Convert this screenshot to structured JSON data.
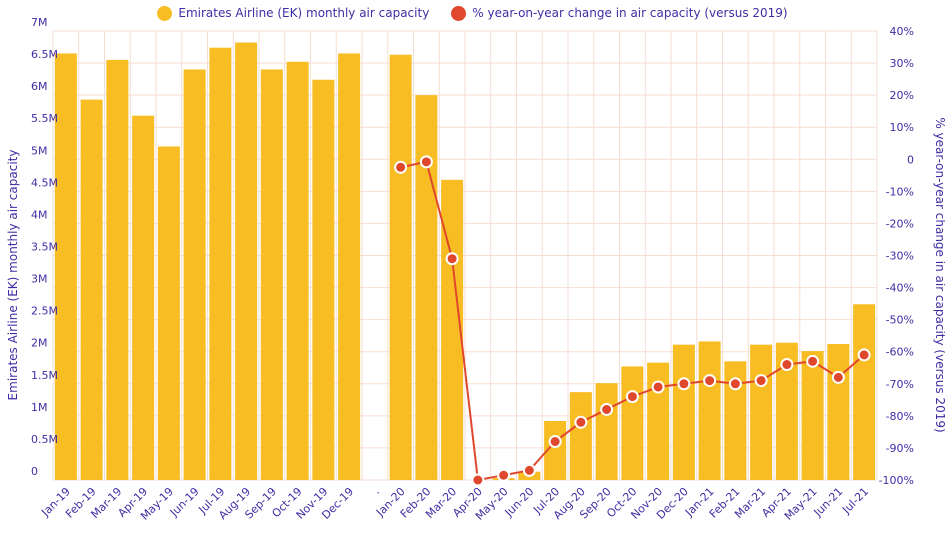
{
  "legend": {
    "bar_label": "Emirates Airline (EK) monthly air capacity",
    "line_label": "% year-on-year change in air capacity (versus 2019)"
  },
  "chart_data": {
    "type": "bar+line",
    "categories": [
      "Jan-19",
      "Feb-19",
      "Mar-19",
      "Apr-19",
      "May-19",
      "Jun-19",
      "Jul-19",
      "Aug-19",
      "Sep-19",
      "Oct-19",
      "Nov-19",
      "Dec-19",
      ".",
      "Jan-20",
      "Feb-20",
      "Mar-20",
      "Apr-20",
      "May-20",
      "Jun-20",
      "Jul-20",
      "Aug-20",
      "Sep-20",
      "Oct-20",
      "Nov-20",
      "Dec-20",
      "Jan-21",
      "Feb-21",
      "Mar-21",
      "Apr-21",
      "May-21",
      "Jun-21",
      "Jul-21"
    ],
    "series": [
      {
        "name": "Emirates Airline (EK) monthly air capacity",
        "type": "bar",
        "axis": "left",
        "values": [
          6650000,
          5930000,
          6550000,
          5680000,
          5200000,
          6400000,
          6740000,
          6820000,
          6400000,
          6520000,
          6240000,
          6650000,
          null,
          6630000,
          6000000,
          4680000,
          0,
          30000,
          130000,
          920000,
          1370000,
          1510000,
          1770000,
          1830000,
          2110000,
          2160000,
          1850000,
          2110000,
          2140000,
          2010000,
          2120000,
          2740000
        ]
      },
      {
        "name": "% year-on-year change in air capacity (versus 2019)",
        "type": "line",
        "axis": "right",
        "values": [
          null,
          null,
          null,
          null,
          null,
          null,
          null,
          null,
          null,
          null,
          null,
          null,
          null,
          -2.5,
          -0.8,
          -31,
          -100,
          -98.5,
          -97,
          -88,
          -82,
          -78,
          -74,
          -71,
          -70,
          -69,
          -70,
          -69,
          -64,
          -63,
          -68,
          -61
        ]
      }
    ],
    "y_left": {
      "label": "Emirates Airline (EK) monthly air capacity",
      "ticks": [
        "0",
        "0.5M",
        "1M",
        "1.5M",
        "2M",
        "2.5M",
        "3M",
        "3.5M",
        "4M",
        "4.5M",
        "5M",
        "5.5M",
        "6M",
        "6.5M",
        "7M"
      ],
      "range": [
        0,
        7000000
      ]
    },
    "y_right": {
      "label": "% year-on-year change in air capacity (versus 2019)",
      "ticks": [
        "-100%",
        "-90%",
        "-80%",
        "-70%",
        "-60%",
        "-50%",
        "-40%",
        "-30%",
        "-20%",
        "-10%",
        "0",
        "10%",
        "20%",
        "30%",
        "40%"
      ],
      "range": [
        -100,
        40
      ]
    },
    "grid": true,
    "legend_position": "top-center",
    "colors": {
      "bar": "#f7bd22",
      "line": "#e0482d",
      "text": "#3d2fa3",
      "grid": "#f6ddd2"
    }
  }
}
